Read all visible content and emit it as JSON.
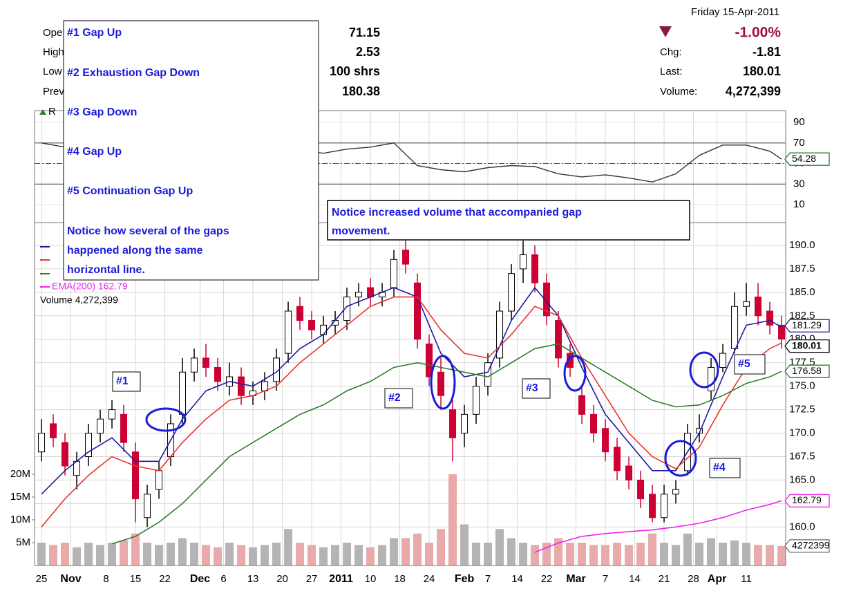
{
  "header": {
    "date": "Friday  15-Apr-2011",
    "change_pct": "-1.00%",
    "chg_label": "Chg:",
    "chg": "-1.81",
    "last_label": "Last:",
    "last": "180.01",
    "volume_label": "Volume:",
    "volume": "4,272,399",
    "left_labels": [
      "Ope",
      "High",
      "Low",
      "Prev"
    ],
    "left_values": [
      "71.15",
      "2.53",
      "100 shrs",
      "180.38"
    ],
    "rsi_label": "R",
    "legend": [
      "EMA(200) 162.79",
      "Volume 4,272,399"
    ]
  },
  "chart_data": {
    "type": "candlestick",
    "grid": true,
    "xlim": [
      -1.18,
      126.7
    ],
    "xticks": [
      {
        "value": 0,
        "label": "25"
      },
      {
        "value": 5,
        "label": "Nov"
      },
      {
        "value": 11,
        "label": "8"
      },
      {
        "value": 16,
        "label": "15"
      },
      {
        "value": 21,
        "label": "22"
      },
      {
        "value": 27,
        "label": "Dec"
      },
      {
        "value": 31,
        "label": "6"
      },
      {
        "value": 36,
        "label": "13"
      },
      {
        "value": 41,
        "label": "20"
      },
      {
        "value": 46,
        "label": "27"
      },
      {
        "value": 51,
        "label": "2011"
      },
      {
        "value": 56,
        "label": "10"
      },
      {
        "value": 61,
        "label": "18"
      },
      {
        "value": 66,
        "label": "24"
      },
      {
        "value": 72,
        "label": "Feb"
      },
      {
        "value": 76,
        "label": "7"
      },
      {
        "value": 81,
        "label": "14"
      },
      {
        "value": 86,
        "label": "22"
      },
      {
        "value": 91,
        "label": "Mar"
      },
      {
        "value": 96,
        "label": "7"
      },
      {
        "value": 101,
        "label": "14"
      },
      {
        "value": 106,
        "label": "21"
      },
      {
        "value": 111,
        "label": "28"
      },
      {
        "value": 115,
        "label": "Apr"
      },
      {
        "value": 120,
        "label": "11"
      }
    ],
    "ylim": [
      155.9,
      191.1
    ],
    "yticks": [
      {
        "value": 160,
        "label": "160.0"
      },
      {
        "value": 162.5,
        "label": "162.5"
      },
      {
        "value": 165,
        "label": "165.0"
      },
      {
        "value": 167.5,
        "label": "167.5"
      },
      {
        "value": 170,
        "label": "170.0"
      },
      {
        "value": 172.5,
        "label": "172.5"
      },
      {
        "value": 175,
        "label": "175.0"
      },
      {
        "value": 177.5,
        "label": "177.5"
      },
      {
        "value": 180,
        "label": "180.0"
      },
      {
        "value": 182.5,
        "label": "182.5"
      },
      {
        "value": 185,
        "label": "185.0"
      },
      {
        "value": 187.5,
        "label": "187.5"
      },
      {
        "value": 190,
        "label": "190.0"
      }
    ],
    "up_color": "#ffffff",
    "down_color": "#cc0033",
    "x": [
      0,
      2,
      4,
      6,
      8,
      10,
      12,
      14,
      16,
      18,
      20,
      22,
      24,
      26,
      28,
      30,
      32,
      34,
      36,
      38,
      40,
      42,
      44,
      46,
      48,
      50,
      52,
      54,
      56,
      58,
      60,
      62,
      64,
      66,
      68,
      70,
      72,
      74,
      76,
      78,
      80,
      82,
      84,
      86,
      88,
      90,
      92,
      94,
      96,
      98,
      100,
      102,
      104,
      106,
      108,
      110,
      112,
      114,
      116,
      118,
      120,
      122,
      124,
      126
    ],
    "open": [
      168,
      171,
      169,
      165.5,
      167.5,
      170,
      171.5,
      172,
      168,
      161,
      164,
      167.5,
      172,
      176.5,
      178,
      177,
      175,
      176,
      174,
      174.5,
      175.5,
      178.5,
      183.5,
      182,
      180.5,
      181.5,
      182,
      184.5,
      185.5,
      184.5,
      185.5,
      189.5,
      186,
      179.5,
      176.5,
      172.5,
      170,
      172,
      175,
      178,
      183,
      187.5,
      189,
      186,
      182,
      178.5,
      174,
      172,
      170.5,
      168.5,
      166.5,
      165,
      163.5,
      161,
      163.5,
      166,
      170,
      174.5,
      177,
      179,
      183.5,
      184.5,
      183,
      181.5
    ],
    "high": [
      171.5,
      172,
      170,
      168,
      171,
      172.5,
      173.5,
      173,
      169,
      164.5,
      167,
      172,
      178,
      179,
      179.5,
      178,
      177.5,
      177,
      175.5,
      176.5,
      179,
      184,
      184.5,
      183,
      182.5,
      183,
      185.5,
      186,
      186.5,
      186,
      189.5,
      191,
      187,
      180.5,
      178,
      173.5,
      173,
      176,
      178.5,
      184,
      188,
      190.5,
      190,
      187,
      183,
      179.5,
      175,
      173,
      171.5,
      169.5,
      167.5,
      166,
      164.5,
      164.5,
      165,
      171,
      172,
      178,
      179.5,
      185,
      186,
      186,
      184,
      182.5
    ],
    "low": [
      167,
      168.5,
      165.5,
      164,
      166.5,
      169,
      170.5,
      168,
      160.5,
      160,
      163,
      166.5,
      171,
      175.5,
      176,
      174.5,
      174,
      173,
      173,
      173.5,
      174.5,
      177.5,
      181,
      180,
      179.5,
      180.5,
      181,
      183.5,
      183.5,
      183.5,
      184.5,
      187,
      179,
      175,
      172.5,
      167,
      168.5,
      171,
      174,
      177,
      182,
      186,
      185,
      181.5,
      177,
      176,
      171,
      169,
      167,
      165,
      164,
      162,
      160.5,
      160.5,
      162.5,
      165.5,
      169,
      173.5,
      176.5,
      178.5,
      182.5,
      181.5,
      180.5,
      179
    ],
    "close": [
      170,
      169.5,
      166.5,
      167,
      170,
      171.5,
      172.5,
      169,
      163,
      163.5,
      166,
      171,
      176.5,
      178,
      177,
      175.5,
      176,
      174,
      174.5,
      175.5,
      178,
      183,
      182,
      181,
      181.5,
      182,
      184.5,
      185,
      184.5,
      185,
      188.5,
      188,
      180,
      176,
      174,
      169.5,
      172,
      175,
      177.5,
      183,
      187,
      189,
      186,
      182.5,
      178,
      177,
      172,
      170,
      168,
      166,
      165,
      163,
      161,
      163.5,
      164,
      170,
      170.5,
      177,
      178.5,
      183.5,
      184,
      182.5,
      181.5,
      180.01
    ],
    "volume": {
      "ylim": [
        0,
        72.4
      ],
      "yticks": [
        {
          "value": 5,
          "label": "5M"
        },
        {
          "value": 10,
          "label": "10M"
        },
        {
          "value": 15,
          "label": "15M"
        },
        {
          "value": 20,
          "label": "20M"
        }
      ],
      "up_color": "#b4b4b4",
      "down_color": "#e8aaaa",
      "values": [
        5,
        4.5,
        5,
        4,
        5,
        4.5,
        5,
        5.5,
        7,
        5,
        4.5,
        5,
        6,
        5,
        4.5,
        4,
        5,
        4.5,
        4,
        4.5,
        5,
        8,
        5,
        4.5,
        4,
        4.5,
        5,
        4.5,
        4,
        4.5,
        6,
        6,
        7,
        5,
        8,
        20,
        9,
        5,
        5,
        8,
        6,
        5,
        4.5,
        5,
        6,
        5,
        5,
        4.5,
        4.5,
        5,
        4.5,
        5,
        7,
        5,
        4.5,
        7,
        5,
        6,
        5,
        5.5,
        5,
        4.5,
        4.5,
        4.272399
      ],
      "last_label": "4272399"
    },
    "lines": [
      {
        "color": "#1a1aa0",
        "x": [
          0,
          4,
          8,
          12,
          16,
          20,
          24,
          28,
          32,
          36,
          40,
          44,
          48,
          52,
          56,
          60,
          64,
          68,
          72,
          76,
          80,
          84,
          88,
          92,
          96,
          100,
          104,
          108,
          112,
          116,
          120,
          124,
          126
        ],
        "values": [
          163.5,
          166,
          168,
          169.5,
          167,
          167,
          171.5,
          174.5,
          175.5,
          175,
          176.5,
          179,
          180.5,
          183.5,
          184.5,
          185.5,
          184.5,
          178.5,
          176,
          176.5,
          182,
          185.5,
          182.5,
          177,
          172,
          169,
          166,
          166,
          170,
          176,
          181.5,
          182,
          181.29
        ]
      },
      {
        "color": "#e8352e",
        "x": [
          0,
          4,
          8,
          12,
          16,
          20,
          24,
          28,
          32,
          36,
          40,
          44,
          48,
          52,
          56,
          60,
          64,
          68,
          72,
          76,
          80,
          84,
          88,
          92,
          96,
          100,
          104,
          108,
          112,
          116,
          120,
          124,
          126
        ],
        "values": [
          160,
          163,
          165.5,
          167.5,
          166.5,
          166,
          169,
          171.5,
          173.5,
          174,
          175,
          177.5,
          179.5,
          181.5,
          183.5,
          184.5,
          184.5,
          181,
          178.5,
          178,
          180.5,
          183.5,
          182.5,
          178,
          174,
          170,
          167.5,
          166.2,
          168.5,
          173,
          177,
          179,
          179.6
        ]
      },
      {
        "color": "#2e7d2e",
        "x": [
          12,
          16,
          20,
          24,
          28,
          32,
          36,
          40,
          44,
          48,
          52,
          56,
          60,
          64,
          68,
          72,
          76,
          80,
          84,
          88,
          92,
          96,
          100,
          104,
          108,
          112,
          116,
          120,
          124,
          126
        ],
        "values": [
          158.2,
          159,
          160.5,
          162.5,
          165,
          167.5,
          169,
          170.5,
          172,
          173,
          174.5,
          175.5,
          177,
          177.5,
          177,
          176.5,
          176,
          177.5,
          179,
          179.5,
          178,
          176.5,
          175,
          173.5,
          172.8,
          173,
          174,
          175.3,
          176,
          176.58
        ]
      },
      {
        "color": "#ee22ee",
        "x": [
          84,
          88,
          92,
          96,
          100,
          104,
          108,
          112,
          116,
          120,
          124,
          126
        ],
        "values": [
          157.3,
          158.3,
          159,
          159.3,
          159.5,
          159.7,
          160,
          160.4,
          161,
          161.8,
          162.4,
          162.79
        ]
      }
    ],
    "rsi": {
      "ylim": [
        -6.1,
        108.2
      ],
      "yticks": [
        10,
        30,
        50,
        70,
        90
      ],
      "levels": [
        30,
        70
      ],
      "midline": 50,
      "color": "#333333",
      "x": [
        0,
        4,
        8,
        12,
        16,
        20,
        24,
        28,
        32,
        36,
        40,
        44,
        48,
        52,
        56,
        60,
        64,
        68,
        72,
        76,
        80,
        84,
        88,
        92,
        96,
        100,
        104,
        108,
        112,
        116,
        120,
        124,
        126
      ],
      "values": [
        70,
        66,
        63,
        58,
        50,
        54,
        60,
        62,
        58,
        55,
        58,
        63,
        60,
        64,
        66,
        70,
        48,
        44,
        42,
        46,
        48,
        47,
        40,
        37,
        39,
        36,
        32,
        40,
        58,
        68,
        68,
        62,
        54.28
      ]
    }
  },
  "annotations": {
    "box_lines": [
      "#1 Gap Up",
      "#2 Exhaustion Gap Down",
      "#3 Gap Down",
      "#4 Gap Up",
      "#5 Continuation Gap Up",
      "Notice how several of the gaps",
      "happened along the same",
      "horizontal line."
    ],
    "note_lines": [
      "Notice increased volume that accompanied gap",
      "movement."
    ],
    "markers": [
      "#1",
      "#2",
      "#3",
      "#4",
      "#5"
    ]
  }
}
